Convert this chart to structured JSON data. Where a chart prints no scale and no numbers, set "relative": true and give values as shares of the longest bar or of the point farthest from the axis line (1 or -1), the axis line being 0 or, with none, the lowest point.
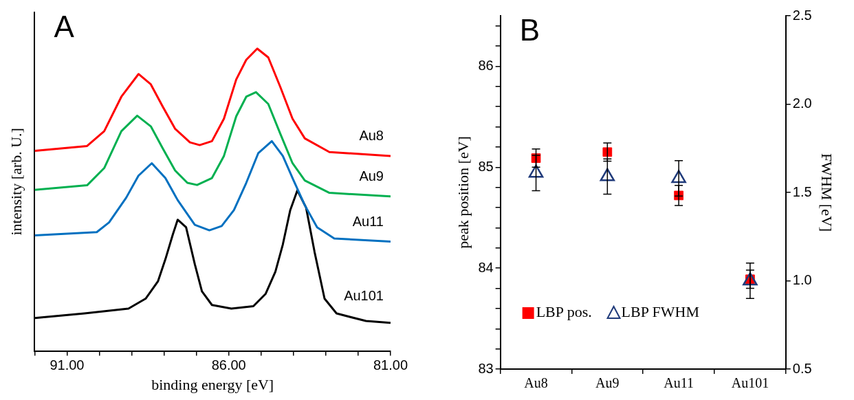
{
  "chart_data": [
    {
      "type": "line",
      "title": "A",
      "xlabel": "binding energy [eV]",
      "ylabel": "intensity [arb. U.]",
      "relative": true,
      "xlim": [
        92,
        81
      ],
      "xticks": [
        {
          "value": 92,
          "label": null
        },
        {
          "value": 91,
          "label": "91.00"
        },
        {
          "value": 90,
          "label": null
        },
        {
          "value": 89,
          "label": null
        },
        {
          "value": 88,
          "label": null
        },
        {
          "value": 87,
          "label": null
        },
        {
          "value": 86,
          "label": "86.00"
        },
        {
          "value": 85,
          "label": null
        },
        {
          "value": 84,
          "label": null
        },
        {
          "value": 83,
          "label": null
        },
        {
          "value": 82,
          "label": null
        },
        {
          "value": 81,
          "label": "81.00"
        }
      ],
      "grid": false,
      "legend": false,
      "marker": "none",
      "line_style": "solid",
      "series": [
        {
          "name": "Au8",
          "color": "#ff0000",
          "x": [
            92.0,
            90.38,
            89.85,
            89.32,
            88.79,
            88.41,
            88.04,
            87.66,
            87.2,
            86.9,
            86.52,
            86.15,
            85.77,
            85.46,
            85.12,
            84.78,
            84.41,
            84.03,
            83.65,
            82.89,
            81.0
          ],
          "values": [
            0.662,
            0.678,
            0.727,
            0.841,
            0.916,
            0.882,
            0.808,
            0.735,
            0.69,
            0.681,
            0.694,
            0.768,
            0.898,
            0.963,
            1.0,
            0.971,
            0.874,
            0.768,
            0.703,
            0.658,
            0.645
          ]
        },
        {
          "name": "Au9",
          "color": "#00b050",
          "x": [
            92.0,
            90.38,
            89.85,
            89.32,
            88.83,
            88.41,
            88.04,
            87.66,
            87.28,
            86.98,
            86.52,
            86.15,
            85.77,
            85.46,
            85.16,
            84.78,
            84.41,
            84.03,
            83.65,
            82.89,
            81.0
          ],
          "values": [
            0.533,
            0.548,
            0.605,
            0.727,
            0.778,
            0.743,
            0.67,
            0.597,
            0.556,
            0.549,
            0.572,
            0.645,
            0.776,
            0.841,
            0.856,
            0.817,
            0.719,
            0.621,
            0.564,
            0.523,
            0.511
          ]
        },
        {
          "name": "Au11",
          "color": "#0070c0",
          "x": [
            92.0,
            90.08,
            89.7,
            89.17,
            88.79,
            88.38,
            87.96,
            87.58,
            87.05,
            86.6,
            86.22,
            85.84,
            85.46,
            85.09,
            84.67,
            84.33,
            84.03,
            83.65,
            83.27,
            82.74,
            81.0
          ],
          "values": [
            0.382,
            0.393,
            0.425,
            0.507,
            0.58,
            0.621,
            0.572,
            0.499,
            0.417,
            0.399,
            0.413,
            0.466,
            0.556,
            0.654,
            0.694,
            0.645,
            0.572,
            0.482,
            0.409,
            0.372,
            0.362
          ]
        },
        {
          "name": "Au101",
          "color": "#000000",
          "x": [
            92.0,
            90.46,
            89.1,
            88.57,
            88.19,
            87.96,
            87.73,
            87.58,
            87.32,
            87.05,
            86.83,
            86.52,
            85.92,
            85.24,
            84.86,
            84.56,
            84.33,
            84.1,
            83.88,
            83.61,
            83.35,
            83.04,
            82.67,
            81.76,
            81.0
          ],
          "values": [
            0.109,
            0.124,
            0.14,
            0.173,
            0.23,
            0.303,
            0.385,
            0.434,
            0.409,
            0.287,
            0.197,
            0.152,
            0.14,
            0.148,
            0.189,
            0.262,
            0.352,
            0.466,
            0.531,
            0.474,
            0.328,
            0.173,
            0.124,
            0.099,
            0.093
          ]
        }
      ]
    },
    {
      "type": "scatter",
      "title": "B",
      "categories": [
        "Au8",
        "Au9",
        "Au11",
        "Au101"
      ],
      "ylabel": "peak position [eV]",
      "y2label": "FWHM [eV]",
      "ylim": [
        83,
        86.5
      ],
      "yticks": [
        83,
        {
          "value": 83.2,
          "label": null
        },
        {
          "value": 83.4,
          "label": null
        },
        {
          "value": 83.6,
          "label": null
        },
        {
          "value": 83.8,
          "label": null
        },
        84,
        {
          "value": 84.2,
          "label": null
        },
        {
          "value": 84.4,
          "label": null
        },
        {
          "value": 84.6,
          "label": null
        },
        {
          "value": 84.8,
          "label": null
        },
        85,
        {
          "value": 85.2,
          "label": null
        },
        {
          "value": 85.4,
          "label": null
        },
        {
          "value": 85.6,
          "label": null
        },
        {
          "value": 85.8,
          "label": null
        },
        86,
        {
          "value": 86.2,
          "label": null
        },
        {
          "value": 86.4,
          "label": null
        }
      ],
      "y2lim": [
        0.5,
        2.5
      ],
      "y2ticks": [
        {
          "value": 0.5,
          "label": "0.5"
        },
        {
          "value": 1,
          "label": "1.0"
        },
        {
          "value": 1.5,
          "label": "1.5"
        },
        {
          "value": 2,
          "label": "2.0"
        },
        {
          "value": 2.5,
          "label": "2.5"
        }
      ],
      "grid": false,
      "legend": "bottom left",
      "series": [
        {
          "name": "LBP pos.",
          "color": "#ff0000",
          "marker": "square",
          "values": [
            85.09,
            85.15,
            84.72,
            83.89
          ],
          "errors": [
            0.09,
            0.09,
            0.1,
            0.09
          ]
        },
        {
          "name": "LBP FWHM",
          "color": "#1f3a7a",
          "marker": "triangle",
          "axis": "y2",
          "values": [
            1.61,
            1.59,
            1.58,
            1.0
          ],
          "errors": [
            0.1,
            0.1,
            0.1,
            0.1
          ]
        }
      ]
    }
  ]
}
